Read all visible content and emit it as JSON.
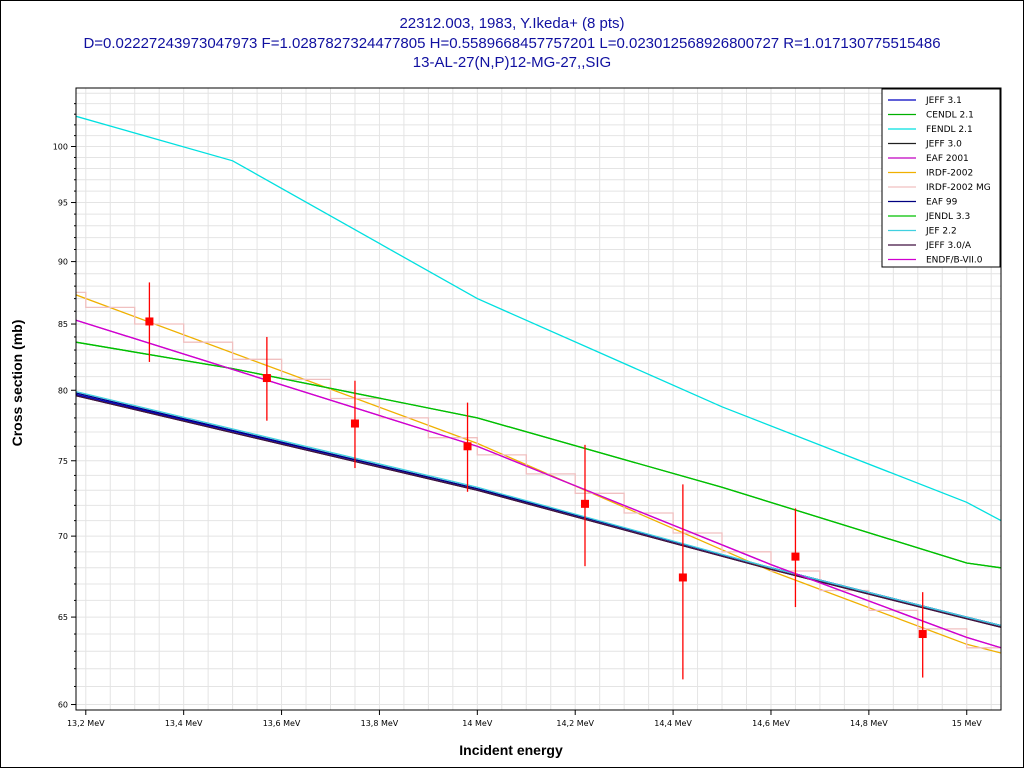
{
  "header": {
    "line1": "22312.003, 1983, Y.Ikeda+ (8 pts)",
    "line2": "D=0.02227243973047973 F=1.0287827324477805 H=0.5589668457757201 L=0.023012568926800727 R=1.017130775515486",
    "line3": "13-AL-27(N,P)12-MG-27,,SIG"
  },
  "chart_data": {
    "type": "line",
    "xlabel": "Incident energy",
    "ylabel": "Cross section (mb)",
    "xlim": [
      13.18,
      15.07
    ],
    "ylim": [
      59.7,
      105.5
    ],
    "y_scale": "log",
    "grid": true,
    "legend_position": "top-right",
    "x_ticks": [
      {
        "value": 13.2,
        "label": "13,2 MeV"
      },
      {
        "value": 13.4,
        "label": "13,4 MeV"
      },
      {
        "value": 13.6,
        "label": "13,6 MeV"
      },
      {
        "value": 13.8,
        "label": "13,8 MeV"
      },
      {
        "value": 14.0,
        "label": "14 MeV"
      },
      {
        "value": 14.2,
        "label": "14,2 MeV"
      },
      {
        "value": 14.4,
        "label": "14,4 MeV"
      },
      {
        "value": 14.6,
        "label": "14,6 MeV"
      },
      {
        "value": 14.8,
        "label": "14,8 MeV"
      },
      {
        "value": 15.0,
        "label": "15 MeV"
      }
    ],
    "y_ticks": [
      {
        "value": 60,
        "label": "60"
      },
      {
        "value": 65,
        "label": "65"
      },
      {
        "value": 70,
        "label": "70"
      },
      {
        "value": 75,
        "label": "75"
      },
      {
        "value": 80,
        "label": "80"
      },
      {
        "value": 85,
        "label": "85"
      },
      {
        "value": 90,
        "label": "90"
      },
      {
        "value": 95,
        "label": "95"
      },
      {
        "value": 100,
        "label": "100"
      }
    ],
    "series": [
      {
        "name": "JEFF 3.1",
        "color": "#0000c0",
        "style": "line",
        "x": [
          13.18,
          14.0,
          14.6,
          15.0,
          15.07
        ],
        "y": [
          79.7,
          73.1,
          68.0,
          65.0,
          64.5
        ]
      },
      {
        "name": "CENDL 2.1",
        "color": "#00b000",
        "style": "line",
        "x": [
          13.18,
          13.5,
          14.0,
          14.5,
          15.0,
          15.07
        ],
        "y": [
          83.6,
          81.6,
          78.0,
          73.2,
          68.3,
          68.0
        ]
      },
      {
        "name": "FENDL 2.1",
        "color": "#00e0e0",
        "style": "line",
        "x": [
          13.18,
          13.5,
          14.0,
          14.5,
          15.0,
          15.07
        ],
        "y": [
          102.8,
          98.7,
          87.0,
          78.8,
          72.2,
          71.0
        ]
      },
      {
        "name": "JEFF 3.0",
        "color": "#202020",
        "style": "line",
        "x": [
          13.18,
          14.0,
          14.6,
          15.0,
          15.07
        ],
        "y": [
          79.6,
          73.0,
          67.9,
          64.9,
          64.4
        ]
      },
      {
        "name": "EAF 2001",
        "color": "#c000c0",
        "style": "line",
        "x": [
          13.18,
          14.0,
          14.6,
          15.0,
          15.07
        ],
        "y": [
          85.3,
          76.0,
          68.2,
          63.8,
          63.2
        ]
      },
      {
        "name": "IRDF-2002",
        "color": "#f0b000",
        "style": "line",
        "x": [
          13.18,
          14.0,
          14.6,
          15.0,
          15.07
        ],
        "y": [
          87.3,
          76.2,
          67.8,
          63.4,
          62.9
        ]
      },
      {
        "name": "IRDF-2002 MG",
        "color": "#f0c0c0",
        "style": "step",
        "x": [
          13.18,
          13.2,
          13.3,
          13.4,
          13.5,
          13.6,
          13.7,
          13.8,
          13.9,
          14.0,
          14.1,
          14.2,
          14.3,
          14.4,
          14.5,
          14.6,
          14.7,
          14.8,
          14.9,
          15.0,
          15.07
        ],
        "y": [
          87.5,
          86.3,
          85.0,
          83.6,
          82.3,
          80.8,
          79.4,
          78.0,
          76.6,
          75.4,
          74.1,
          72.8,
          71.5,
          70.2,
          69.0,
          67.8,
          66.6,
          65.4,
          64.3,
          63.2,
          63.2
        ]
      },
      {
        "name": "EAF 99",
        "color": "#000080",
        "style": "line",
        "x": [
          13.18,
          14.0,
          14.6,
          15.0,
          15.07
        ],
        "y": [
          79.8,
          73.1,
          68.0,
          65.0,
          64.5
        ]
      },
      {
        "name": "JENDL 3.3",
        "color": "#00c000",
        "style": "line",
        "x": [
          13.18,
          13.5,
          14.0,
          14.5,
          15.0,
          15.07
        ],
        "y": [
          83.6,
          81.6,
          78.0,
          73.2,
          68.3,
          68.0
        ]
      },
      {
        "name": "JEF 2.2",
        "color": "#40d0e0",
        "style": "line",
        "x": [
          13.18,
          14.0,
          14.6,
          15.0,
          15.07
        ],
        "y": [
          79.9,
          73.2,
          68.0,
          65.0,
          64.5
        ]
      },
      {
        "name": "JEFF 3.0/A",
        "color": "#401040",
        "style": "line",
        "x": [
          13.18,
          14.0,
          14.6,
          15.0,
          15.07
        ],
        "y": [
          79.6,
          73.0,
          67.9,
          64.9,
          64.4
        ]
      },
      {
        "name": "ENDF/B-VII.0",
        "color": "#d000d0",
        "style": "line",
        "x": [
          13.18,
          14.0,
          14.6,
          15.0,
          15.07
        ],
        "y": [
          85.3,
          76.0,
          68.2,
          63.8,
          63.2
        ]
      }
    ],
    "experimental": {
      "color": "#ff0000",
      "points": [
        {
          "x": 13.33,
          "y": 85.2,
          "err": 3.1
        },
        {
          "x": 13.57,
          "y": 80.9,
          "err": 3.1
        },
        {
          "x": 13.75,
          "y": 77.6,
          "err": 3.1
        },
        {
          "x": 13.98,
          "y": 76.0,
          "err": 3.1
        },
        {
          "x": 14.22,
          "y": 72.1,
          "err": 4.0
        },
        {
          "x": 14.42,
          "y": 67.4,
          "err": 6.0
        },
        {
          "x": 14.65,
          "y": 68.7,
          "err": 3.1
        },
        {
          "x": 14.91,
          "y": 64.0,
          "err": 2.5
        }
      ]
    }
  }
}
